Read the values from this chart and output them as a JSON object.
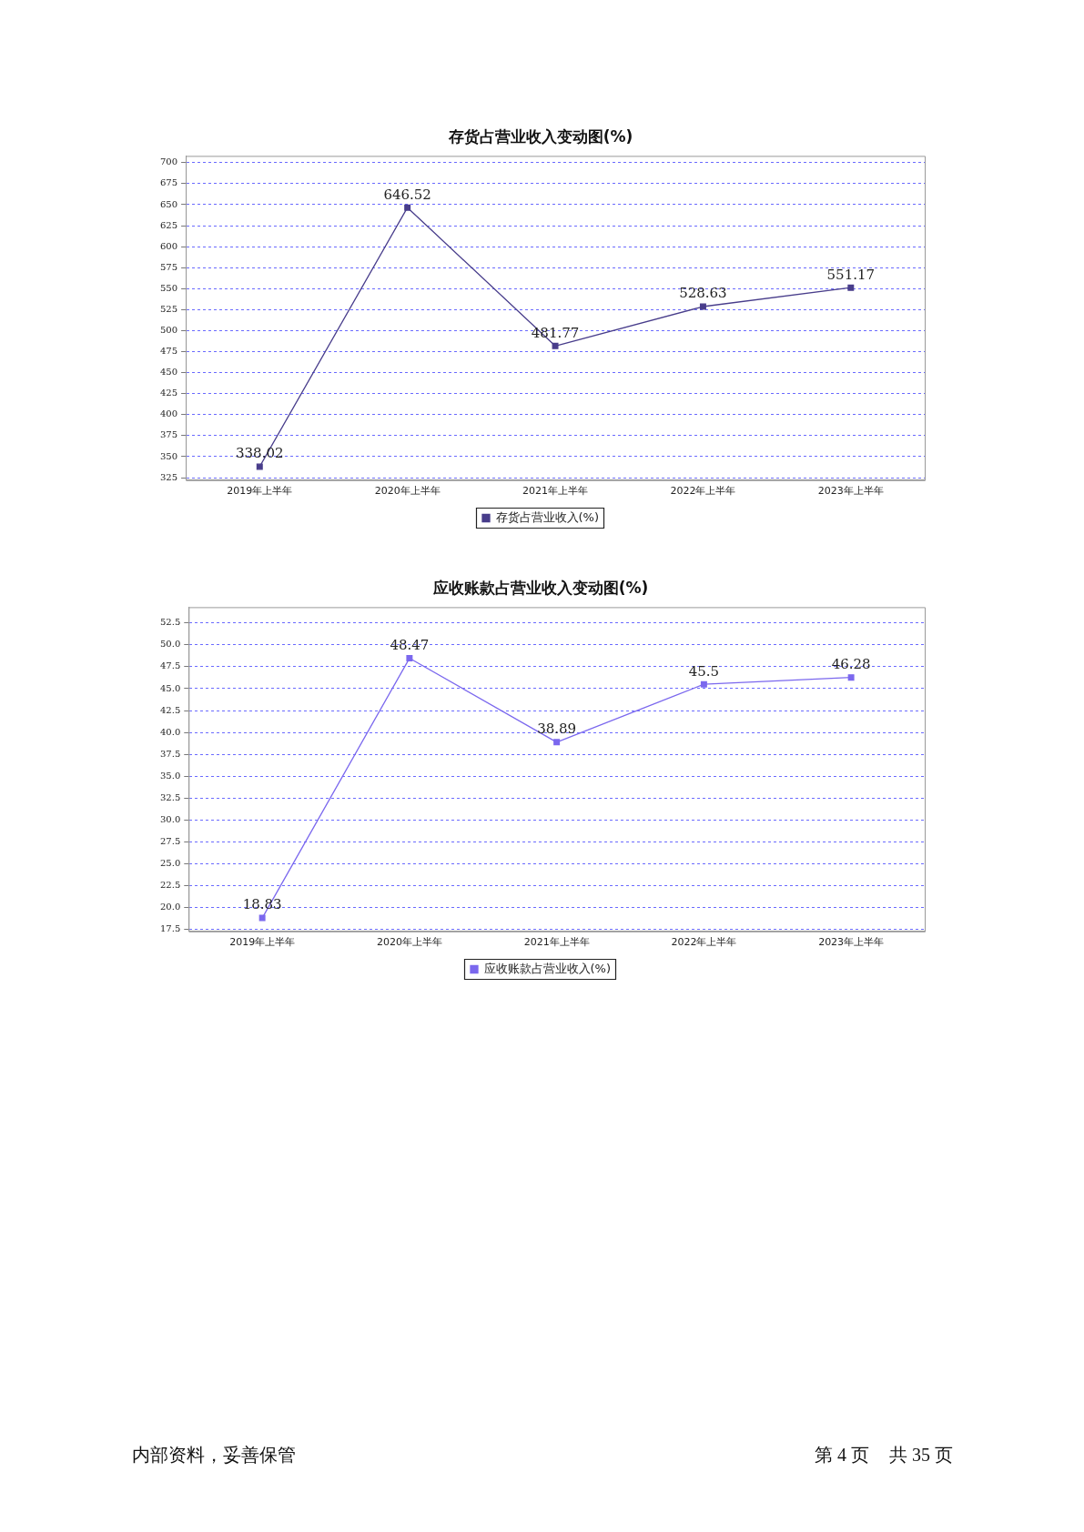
{
  "chart_data": [
    {
      "type": "line",
      "title": "存货占营业收入变动图(%)",
      "categories": [
        "2019年上半年",
        "2020年上半年",
        "2021年上半年",
        "2022年上半年",
        "2023年上半年"
      ],
      "series": [
        {
          "name": "存货占营业收入(%)",
          "color": "#483d8b",
          "values": [
            338.02,
            646.52,
            481.77,
            528.63,
            551.17
          ]
        }
      ],
      "ylim": [
        322,
        708
      ],
      "yticks": [
        325,
        350,
        375,
        400,
        425,
        450,
        475,
        500,
        525,
        550,
        575,
        600,
        625,
        650,
        675,
        700
      ],
      "grid": "y",
      "legend": "bottom",
      "marker": "square",
      "line_style": "solid",
      "data_labels": true
    },
    {
      "type": "line",
      "title": "应收账款占营业收入变动图(%)",
      "categories": [
        "2019年上半年",
        "2020年上半年",
        "2021年上半年",
        "2022年上半年",
        "2023年上半年"
      ],
      "series": [
        {
          "name": "应收账款占营业收入(%)",
          "color": "#7b68ee",
          "values": [
            18.83,
            48.47,
            38.89,
            45.5,
            46.28
          ]
        }
      ],
      "ylim": [
        17.3,
        54.3
      ],
      "yticks": [
        17.5,
        {
          "value": 20,
          "label": "20.0"
        },
        22.5,
        {
          "value": 25,
          "label": "25.0"
        },
        27.5,
        {
          "value": 30,
          "label": "30.0"
        },
        32.5,
        {
          "value": 35,
          "label": "35.0"
        },
        37.5,
        {
          "value": 40,
          "label": "40.0"
        },
        42.5,
        {
          "value": 45,
          "label": "45.0"
        },
        47.5,
        {
          "value": 50,
          "label": "50.0"
        },
        52.5
      ],
      "grid": "y",
      "legend": "bottom",
      "marker": "square",
      "line_style": "solid",
      "data_labels": true,
      "annotations": [
        "内部资料，妥善保管",
        "第 4 页",
        "共 35 页"
      ]
    }
  ]
}
